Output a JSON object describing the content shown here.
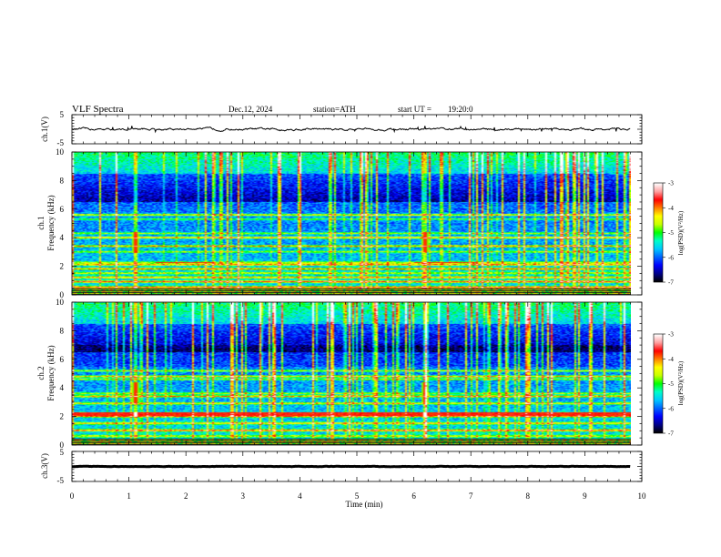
{
  "header": {
    "title": "VLF  Spectra",
    "date": "Dec.12, 2024",
    "station": "station=ATH",
    "start_label": "start  UT  =",
    "start_time": "19:20:0"
  },
  "chart_data": [
    {
      "type": "line",
      "name": "ch1-waveform",
      "ylabel": "ch.1(V)",
      "ylim": [
        -5,
        5
      ],
      "yticks": [
        "5",
        "-5"
      ],
      "x_range_min": [
        0,
        9.8
      ],
      "level_V": 0.0,
      "fluctuation_V": 0.6
    },
    {
      "type": "heatmap",
      "name": "ch1-spectrogram",
      "ylabel": "ch.1\nFrequency  (kHz)",
      "ylim_khz": [
        0,
        10
      ],
      "yticks": [
        "0",
        "2",
        "4",
        "6",
        "8",
        "10"
      ],
      "x_range_min": [
        0,
        9.8
      ],
      "colorbar": {
        "label": "log(PSD)(V²/Hz)",
        "range": [
          -7,
          -3
        ],
        "ticks": [
          "-3",
          "-4",
          "-5",
          "-6",
          "-7"
        ]
      },
      "emission_lines_khz": [
        0.5,
        0.9,
        1.2,
        1.5,
        1.8,
        2.1,
        2.25,
        3.0,
        3.4,
        4.0,
        4.3,
        5.3,
        5.6
      ],
      "strong_band_khz": [
        2.2,
        2.3
      ],
      "strong_band_intervals_min": [
        [
          1.45,
          2.45
        ],
        [
          6.0,
          7.1
        ]
      ],
      "features_min": [
        1.1,
        6.2
      ]
    },
    {
      "type": "heatmap",
      "name": "ch2-spectrogram",
      "ylabel": "ch.2\nFrequency  (kHz)",
      "ylim_khz": [
        0,
        10
      ],
      "yticks": [
        "0",
        "2",
        "4",
        "6",
        "8",
        "10"
      ],
      "x_range_min": [
        0,
        9.8
      ],
      "colorbar": {
        "label": "log(PSD)(V²/Hz)",
        "range": [
          -7,
          -3
        ],
        "ticks": [
          "-3",
          "-4",
          "-5",
          "-6",
          "-7"
        ]
      },
      "emission_lines_khz": [
        0.6,
        1.0,
        1.5,
        2.0,
        2.2,
        2.9,
        3.4,
        3.6,
        4.6,
        4.8,
        5.2
      ],
      "strong_band_khz": [
        2.0,
        2.3
      ],
      "strong_band_intervals_min": [
        [
          0.0,
          9.8
        ]
      ],
      "features_min": [
        1.1,
        6.2
      ]
    },
    {
      "type": "line",
      "name": "ch3-waveform",
      "ylabel": "ch.3(V)",
      "ylim": [
        -5,
        5
      ],
      "yticks": [
        "5",
        "-5"
      ],
      "x_range_min": [
        0,
        9.8
      ],
      "level_V": 0.0,
      "fluctuation_V": 0.1
    }
  ],
  "xaxis": {
    "label": "Time  (min)",
    "range": [
      0,
      10
    ],
    "ticks": [
      "0",
      "1",
      "2",
      "3",
      "4",
      "5",
      "6",
      "7",
      "8",
      "9",
      "10"
    ]
  },
  "colors": {
    "colormap": [
      "#000000",
      "#00008b",
      "#0000ff",
      "#0064ff",
      "#00c8ff",
      "#00ffc8",
      "#00ff00",
      "#c8ff00",
      "#ffff00",
      "#ff8000",
      "#ff0000",
      "#ffa0a0",
      "#ffffff"
    ]
  }
}
